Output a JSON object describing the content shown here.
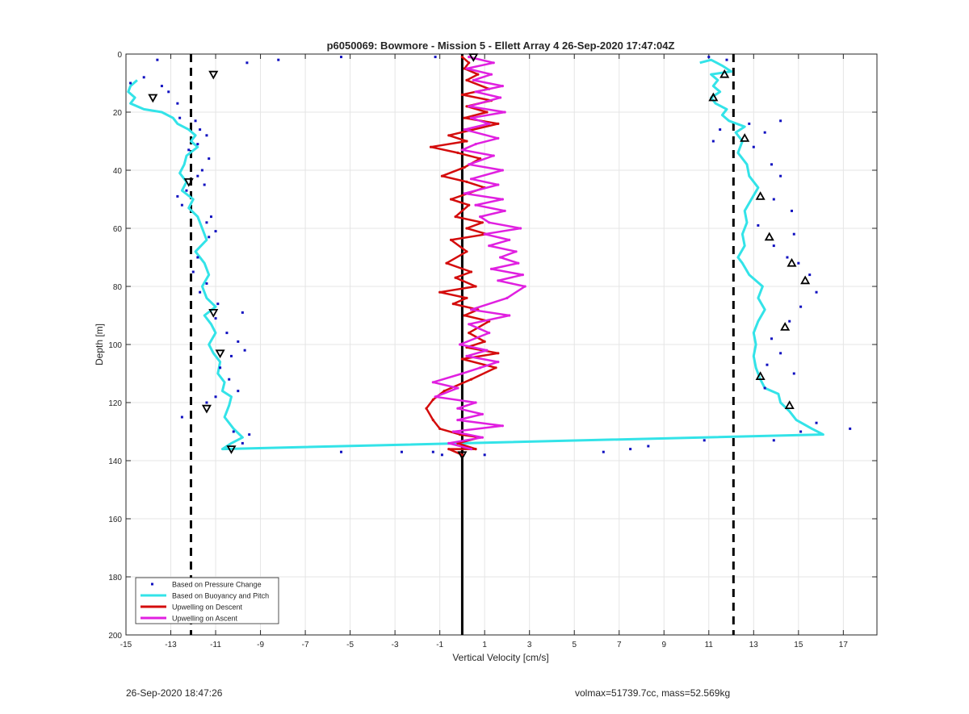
{
  "footer": {
    "left_text": "26-Sep-2020 18:47:26",
    "right_text": "volmax=51739.7cc, mass=52.569kg"
  },
  "colors": {
    "pressure": "#1010c0",
    "buoyancy": "#33e3e8",
    "descent": "#d40c0c",
    "ascent": "#e020e0",
    "reference": "#000000",
    "grid": "#e5e5e5"
  },
  "chart_data": {
    "type": "line",
    "title": "p6050069: Bowmore - Mission 5 - Ellett Array 4 26-Sep-2020 17:47:04Z",
    "xlabel": "Vertical Velocity [cm/s]",
    "ylabel": "Depth [m]",
    "xlim": [
      -15,
      18.5
    ],
    "ylim": [
      0,
      200
    ],
    "y_reversed": true,
    "x_ticks": [
      -15,
      -13,
      -11,
      -9,
      -7,
      -5,
      -3,
      -1,
      1,
      3,
      5,
      7,
      9,
      11,
      13,
      15,
      17
    ],
    "y_ticks": [
      0,
      20,
      40,
      60,
      80,
      100,
      120,
      140,
      160,
      180,
      200
    ],
    "grid": true,
    "legend_position": "bottom-left",
    "legend": [
      "Based on Pressure Change",
      "Based on Buoyancy and Pitch",
      "Upwelling on Descent",
      "Upwelling on Ascent"
    ],
    "reference_lines": {
      "solid_x": 0,
      "dashed_x": [
        -12.1,
        12.1
      ]
    },
    "series": [
      {
        "name": "Based on Pressure Change",
        "type": "scatter",
        "points": [
          [
            -13.6,
            2
          ],
          [
            -8.2,
            2
          ],
          [
            -5.4,
            1
          ],
          [
            -9.6,
            3
          ],
          [
            -1.2,
            1
          ],
          [
            11.0,
            1
          ],
          [
            11.8,
            2
          ],
          [
            -14.8,
            10
          ],
          [
            -14.2,
            8
          ],
          [
            -13.4,
            11
          ],
          [
            -13.1,
            13
          ],
          [
            -12.7,
            17
          ],
          [
            -12.6,
            22
          ],
          [
            -11.9,
            23
          ],
          [
            -11.7,
            26
          ],
          [
            -11.4,
            28
          ],
          [
            -11.8,
            31
          ],
          [
            -12.2,
            33
          ],
          [
            -11.3,
            36
          ],
          [
            -11.6,
            40
          ],
          [
            -11.8,
            42
          ],
          [
            -11.5,
            45
          ],
          [
            -12.3,
            47
          ],
          [
            -12.7,
            49
          ],
          [
            -12.5,
            52
          ],
          [
            -11.2,
            56
          ],
          [
            -11.4,
            58
          ],
          [
            -11.0,
            61
          ],
          [
            -11.3,
            63
          ],
          [
            -11.8,
            70
          ],
          [
            -12.0,
            75
          ],
          [
            -11.4,
            79
          ],
          [
            -11.7,
            82
          ],
          [
            -10.9,
            86
          ],
          [
            -9.8,
            89
          ],
          [
            -11.0,
            91
          ],
          [
            -10.5,
            96
          ],
          [
            -10.0,
            99
          ],
          [
            -9.7,
            102
          ],
          [
            -10.3,
            104
          ],
          [
            -10.8,
            108
          ],
          [
            -10.4,
            112
          ],
          [
            -10.0,
            116
          ],
          [
            -11.0,
            118
          ],
          [
            -11.4,
            120
          ],
          [
            -12.5,
            125
          ],
          [
            -10.2,
            130
          ],
          [
            -9.5,
            131
          ],
          [
            -9.8,
            134
          ],
          [
            -5.4,
            137
          ],
          [
            -2.7,
            137
          ],
          [
            -1.3,
            137
          ],
          [
            -0.9,
            138
          ],
          [
            1.0,
            138
          ],
          [
            6.3,
            137
          ],
          [
            7.5,
            136
          ],
          [
            8.3,
            135
          ],
          [
            10.8,
            133
          ],
          [
            11.2,
            30
          ],
          [
            11.5,
            26
          ],
          [
            12.8,
            24
          ],
          [
            13.5,
            27
          ],
          [
            14.2,
            23
          ],
          [
            13.0,
            32
          ],
          [
            13.8,
            38
          ],
          [
            14.2,
            42
          ],
          [
            13.9,
            50
          ],
          [
            14.7,
            54
          ],
          [
            13.2,
            59
          ],
          [
            14.8,
            62
          ],
          [
            13.9,
            66
          ],
          [
            14.5,
            70
          ],
          [
            15.0,
            72
          ],
          [
            15.5,
            76
          ],
          [
            15.8,
            82
          ],
          [
            15.1,
            87
          ],
          [
            14.6,
            92
          ],
          [
            13.8,
            98
          ],
          [
            14.2,
            103
          ],
          [
            13.6,
            107
          ],
          [
            14.8,
            110
          ],
          [
            13.5,
            115
          ],
          [
            15.8,
            127
          ],
          [
            17.3,
            129
          ],
          [
            15.1,
            130
          ],
          [
            13.9,
            133
          ]
        ]
      },
      {
        "name": "Based on Buoyancy and Pitch",
        "type": "line",
        "points": [
          [
            -14.5,
            9
          ],
          [
            -14.8,
            11
          ],
          [
            -14.9,
            13
          ],
          [
            -14.6,
            15
          ],
          [
            -14.8,
            17
          ],
          [
            -14.2,
            19
          ],
          [
            -13.4,
            20
          ],
          [
            -12.9,
            22
          ],
          [
            -12.7,
            24
          ],
          [
            -12.2,
            26
          ],
          [
            -11.9,
            28
          ],
          [
            -12.1,
            30
          ],
          [
            -11.8,
            32
          ],
          [
            -12.3,
            35
          ],
          [
            -12.4,
            38
          ],
          [
            -12.6,
            41
          ],
          [
            -12.3,
            44
          ],
          [
            -12.5,
            47
          ],
          [
            -12.0,
            50
          ],
          [
            -12.2,
            53
          ],
          [
            -11.8,
            56
          ],
          [
            -11.6,
            60
          ],
          [
            -11.4,
            64
          ],
          [
            -11.9,
            68
          ],
          [
            -11.5,
            72
          ],
          [
            -11.3,
            76
          ],
          [
            -11.6,
            80
          ],
          [
            -11.4,
            84
          ],
          [
            -11.0,
            87
          ],
          [
            -11.5,
            90
          ],
          [
            -11.2,
            93
          ],
          [
            -11.0,
            96
          ],
          [
            -11.3,
            100
          ],
          [
            -11.1,
            103
          ],
          [
            -10.8,
            106
          ],
          [
            -10.9,
            110
          ],
          [
            -10.6,
            113
          ],
          [
            -10.7,
            116
          ],
          [
            -10.3,
            118
          ],
          [
            -10.4,
            121
          ],
          [
            -10.6,
            125
          ],
          [
            -10.2,
            129
          ],
          [
            -9.8,
            132
          ],
          [
            -10.3,
            134
          ],
          [
            -10.7,
            136
          ],
          [
            16.1,
            131
          ],
          [
            15.6,
            129
          ],
          [
            14.9,
            126
          ],
          [
            14.6,
            123
          ],
          [
            14.2,
            120
          ],
          [
            14.1,
            117
          ],
          [
            13.5,
            115
          ],
          [
            13.3,
            112
          ],
          [
            13.1,
            108
          ],
          [
            13.0,
            104
          ],
          [
            13.1,
            100
          ],
          [
            13.0,
            96
          ],
          [
            13.2,
            92
          ],
          [
            13.5,
            88
          ],
          [
            13.2,
            84
          ],
          [
            13.4,
            80
          ],
          [
            12.8,
            76
          ],
          [
            12.5,
            72
          ],
          [
            12.3,
            70
          ],
          [
            12.6,
            66
          ],
          [
            12.5,
            62
          ],
          [
            12.7,
            58
          ],
          [
            12.6,
            54
          ],
          [
            12.9,
            50
          ],
          [
            13.2,
            46
          ],
          [
            12.8,
            42
          ],
          [
            12.7,
            38
          ],
          [
            12.3,
            34
          ],
          [
            12.5,
            30
          ],
          [
            12.2,
            27
          ],
          [
            12.6,
            25
          ],
          [
            11.9,
            23
          ],
          [
            11.6,
            21
          ],
          [
            11.8,
            19
          ],
          [
            11.3,
            17
          ],
          [
            11.1,
            15
          ],
          [
            11.5,
            13
          ],
          [
            11.2,
            11
          ],
          [
            11.4,
            9
          ],
          [
            11.1,
            7
          ],
          [
            12.0,
            6
          ],
          [
            11.6,
            4
          ],
          [
            11.1,
            2
          ],
          [
            10.6,
            3
          ]
        ]
      },
      {
        "name": "Upwelling on Descent",
        "type": "line",
        "points": [
          [
            0.0,
            1
          ],
          [
            0.3,
            3
          ],
          [
            0.1,
            5
          ],
          [
            0.7,
            7
          ],
          [
            0.2,
            9
          ],
          [
            1.2,
            12
          ],
          [
            0.0,
            14
          ],
          [
            1.3,
            16
          ],
          [
            0.2,
            18
          ],
          [
            1.1,
            20
          ],
          [
            0.1,
            22
          ],
          [
            1.6,
            24
          ],
          [
            -0.6,
            28
          ],
          [
            0.2,
            30
          ],
          [
            -1.4,
            32
          ],
          [
            -0.2,
            34
          ],
          [
            0.8,
            36
          ],
          [
            0.1,
            39
          ],
          [
            -0.9,
            42
          ],
          [
            0.2,
            44
          ],
          [
            1.0,
            46
          ],
          [
            -0.5,
            50
          ],
          [
            0.3,
            52
          ],
          [
            -0.3,
            56
          ],
          [
            0.9,
            58
          ],
          [
            0.2,
            60
          ],
          [
            1.1,
            62
          ],
          [
            -0.5,
            64
          ],
          [
            0.2,
            68
          ],
          [
            -0.7,
            72
          ],
          [
            0.4,
            75
          ],
          [
            -0.3,
            77
          ],
          [
            0.6,
            80
          ],
          [
            -1.0,
            82
          ],
          [
            0.2,
            84
          ],
          [
            -0.4,
            86
          ],
          [
            0.7,
            88
          ],
          [
            0.1,
            90
          ],
          [
            1.2,
            92
          ],
          [
            0.3,
            96
          ],
          [
            1.0,
            99
          ],
          [
            0.2,
            101
          ],
          [
            1.6,
            103
          ],
          [
            0.0,
            105
          ],
          [
            1.5,
            108
          ],
          [
            0.4,
            112
          ],
          [
            -0.8,
            116
          ],
          [
            -1.3,
            119
          ],
          [
            -1.6,
            122
          ],
          [
            -1.3,
            126
          ],
          [
            -1.0,
            129
          ],
          [
            -0.1,
            131
          ],
          [
            0.8,
            132
          ],
          [
            -0.2,
            134
          ],
          [
            0.6,
            136
          ],
          [
            -0.6,
            136
          ],
          [
            0.0,
            138
          ]
        ]
      },
      {
        "name": "Upwelling on Ascent",
        "type": "line",
        "points": [
          [
            0.3,
            1
          ],
          [
            1.4,
            3
          ],
          [
            0.2,
            5
          ],
          [
            1.3,
            7
          ],
          [
            0.5,
            9
          ],
          [
            1.8,
            11
          ],
          [
            0.6,
            13
          ],
          [
            1.7,
            15
          ],
          [
            0.3,
            18
          ],
          [
            1.9,
            20
          ],
          [
            0.4,
            22
          ],
          [
            1.2,
            24
          ],
          [
            0.1,
            26
          ],
          [
            1.6,
            29
          ],
          [
            0.6,
            31
          ],
          [
            0.0,
            33
          ],
          [
            1.4,
            35
          ],
          [
            0.3,
            38
          ],
          [
            1.8,
            40
          ],
          [
            0.4,
            43
          ],
          [
            1.6,
            45
          ],
          [
            0.1,
            48
          ],
          [
            1.8,
            50
          ],
          [
            0.6,
            52
          ],
          [
            1.9,
            54
          ],
          [
            0.8,
            56
          ],
          [
            1.2,
            58
          ],
          [
            2.6,
            60
          ],
          [
            1.0,
            62
          ],
          [
            2.1,
            64
          ],
          [
            1.2,
            66
          ],
          [
            2.4,
            68
          ],
          [
            1.7,
            70
          ],
          [
            2.5,
            72
          ],
          [
            1.3,
            74
          ],
          [
            2.7,
            76
          ],
          [
            1.6,
            78
          ],
          [
            2.8,
            80
          ],
          [
            2.0,
            84
          ],
          [
            0.4,
            88
          ],
          [
            2.1,
            90
          ],
          [
            0.3,
            93
          ],
          [
            1.2,
            96
          ],
          [
            -0.1,
            100
          ],
          [
            1.1,
            102
          ],
          [
            0.2,
            104
          ],
          [
            1.6,
            106
          ],
          [
            0.8,
            108
          ],
          [
            0.0,
            110
          ],
          [
            -1.3,
            113
          ],
          [
            -0.2,
            115
          ],
          [
            -1.2,
            118
          ],
          [
            0.6,
            120
          ],
          [
            -0.2,
            122
          ],
          [
            0.9,
            124
          ],
          [
            -0.2,
            126
          ],
          [
            1.8,
            128
          ],
          [
            -0.4,
            130
          ],
          [
            0.9,
            132
          ],
          [
            -0.6,
            134
          ],
          [
            0.4,
            136
          ]
        ]
      }
    ],
    "markers": {
      "descent_triangles": [
        [
          0.5,
          1
        ],
        [
          -11.1,
          7
        ],
        [
          -13.8,
          15
        ],
        [
          -12.2,
          44
        ],
        [
          -11.1,
          89
        ],
        [
          -10.8,
          103
        ],
        [
          -11.4,
          122
        ],
        [
          -10.3,
          136
        ],
        [
          0.0,
          138
        ]
      ],
      "ascent_triangles": [
        [
          11.7,
          7
        ],
        [
          11.2,
          15
        ],
        [
          12.6,
          29
        ],
        [
          13.3,
          49
        ],
        [
          13.7,
          63
        ],
        [
          14.7,
          72
        ],
        [
          15.3,
          78
        ],
        [
          14.4,
          94
        ],
        [
          13.3,
          111
        ],
        [
          14.6,
          121
        ]
      ]
    }
  }
}
